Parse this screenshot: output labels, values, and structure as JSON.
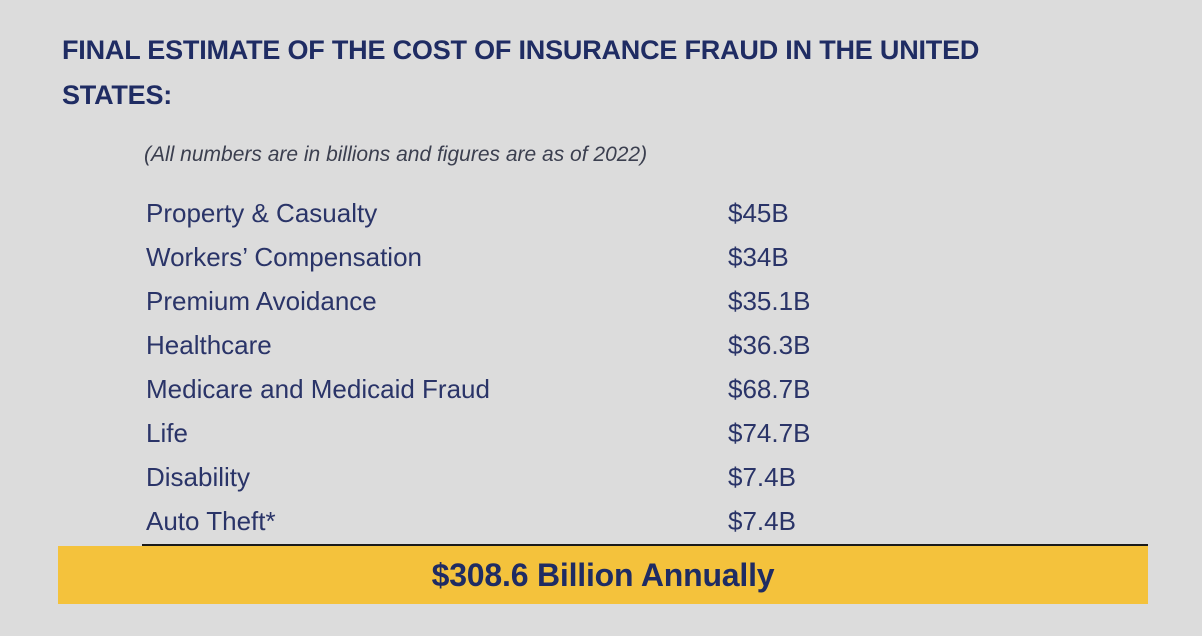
{
  "title": "FINAL ESTIMATE OF THE COST OF INSURANCE FRAUD IN THE UNITED STATES:",
  "note": "(All numbers are in billions and figures are as of 2022)",
  "rows": [
    {
      "label": "Property & Casualty",
      "value": "$45B"
    },
    {
      "label": "Workers’ Compensation",
      "value": "$34B"
    },
    {
      "label": "Premium Avoidance",
      "value": "$35.1B"
    },
    {
      "label": "Healthcare",
      "value": "$36.3B"
    },
    {
      "label": "Medicare and Medicaid Fraud",
      "value": "$68.7B"
    },
    {
      "label": "Life",
      "value": "$74.7B"
    },
    {
      "label": "Disability",
      "value": "$7.4B"
    },
    {
      "label": "Auto Theft*",
      "value": "$7.4B"
    }
  ],
  "total": "$308.6 Billion Annually",
  "colors": {
    "background": "#dcdcdc",
    "title": "#1f2c63",
    "text": "#2a3468",
    "total_bar": "#f4c23c"
  }
}
